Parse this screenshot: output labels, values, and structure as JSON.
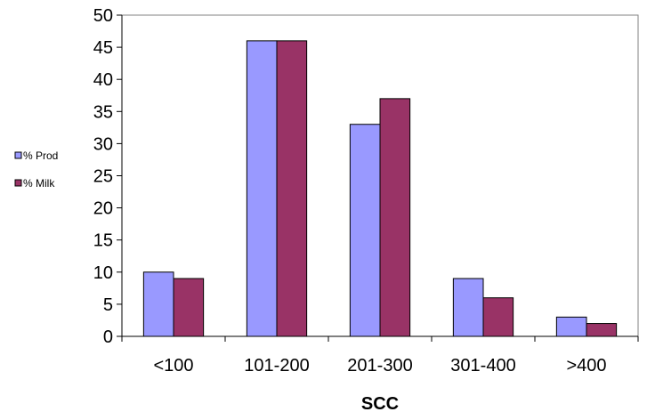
{
  "chart_data": {
    "type": "bar",
    "categories": [
      "<100",
      "101-200",
      "201-300",
      "301-400",
      ">400"
    ],
    "series": [
      {
        "name": "% Prod",
        "values": [
          10,
          46,
          33,
          9,
          3
        ],
        "color": "#9999ff"
      },
      {
        "name": "% Milk",
        "values": [
          9,
          46,
          37,
          6,
          2
        ],
        "color": "#993366"
      }
    ],
    "xlabel": "SCC",
    "ylabel": "",
    "ylim": [
      0,
      50
    ],
    "yticks": [
      0,
      5,
      10,
      15,
      20,
      25,
      30,
      35,
      40,
      45,
      50
    ],
    "grid": false,
    "legend": "left"
  }
}
